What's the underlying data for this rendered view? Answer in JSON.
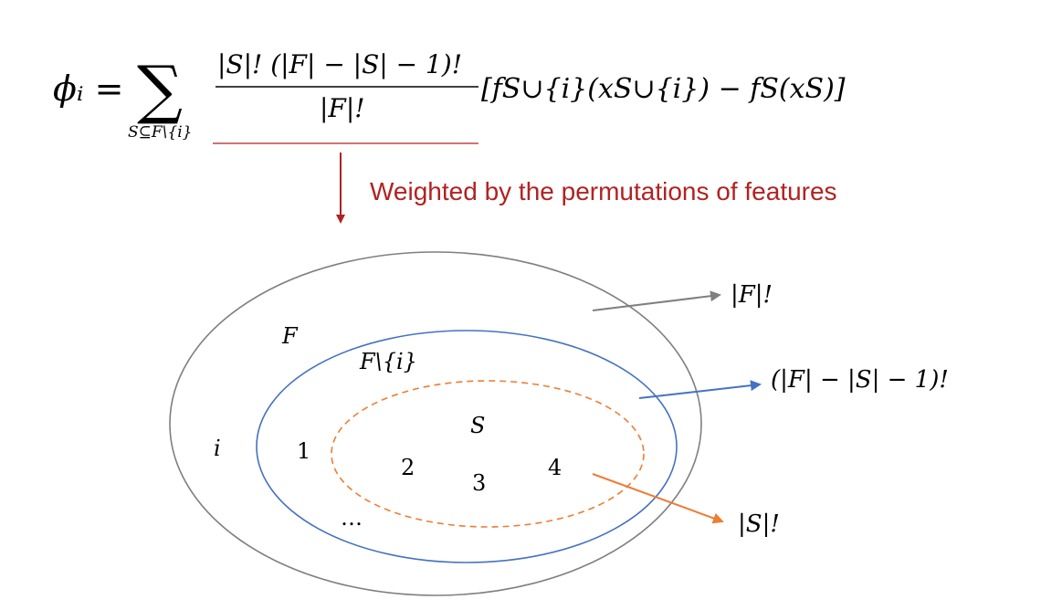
{
  "formula": {
    "lhs": "ϕᵢ =",
    "sum_symbol": "∑",
    "sum_subscript": "S⊆F\\{i}",
    "numerator": "|S|! (|F| − |S| − 1)!",
    "denominator": "|F|!",
    "bracket_term": "[fS∪{i}(xS∪{i}) − fS(xS)]"
  },
  "caption": {
    "text": "Weighted by the permutations of features",
    "color": "#b22222"
  },
  "diagram": {
    "outer_label": "F",
    "inner_label": "F\\{i}",
    "subset_label": "S",
    "element_i": "i",
    "elements": [
      "1",
      "2",
      "3",
      "4"
    ],
    "ellipsis": "…",
    "annotations": {
      "outer": "|F|!",
      "inner": "(|F| − |S| − 1)!",
      "subset": "|S|!"
    },
    "colors": {
      "outer": "#7f7f7f",
      "inner": "#4472c4",
      "subset": "#ed7d31",
      "accent": "#b22222"
    }
  }
}
